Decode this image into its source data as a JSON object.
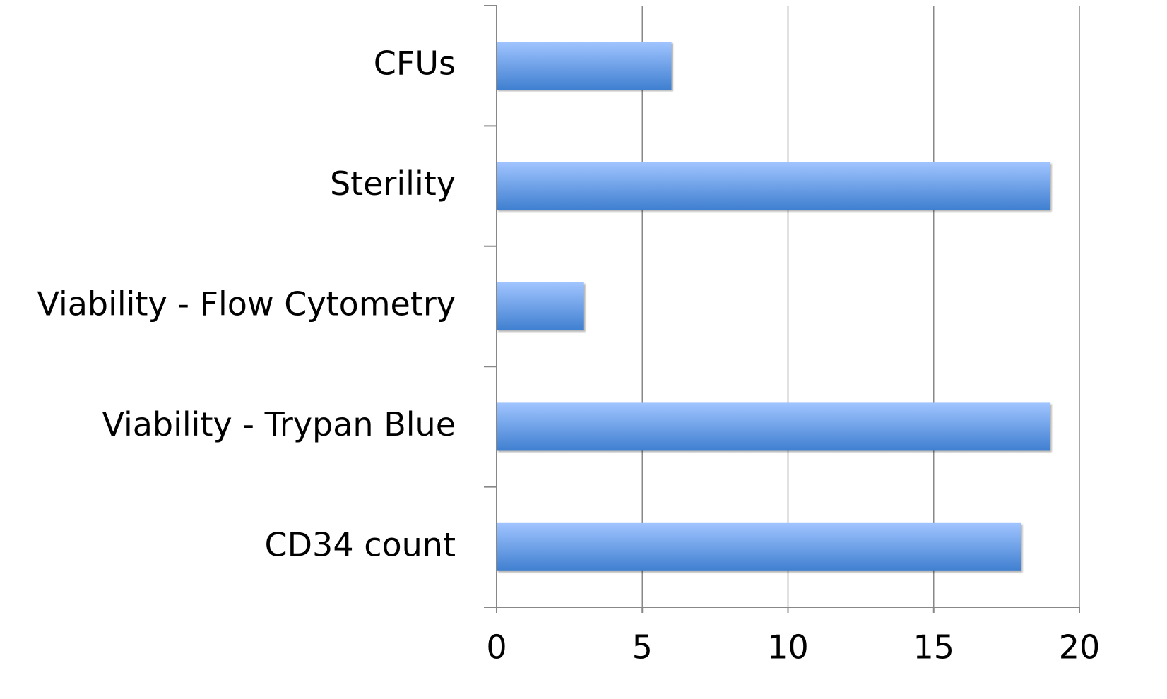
{
  "chart_data": {
    "type": "barh",
    "categories": [
      "CFUs",
      "Sterility",
      "Viability - Flow Cytometry",
      "Viability - Trypan Blue",
      "CD34 count"
    ],
    "values": [
      6,
      19,
      3,
      19,
      18
    ],
    "color": "#3f7fd0",
    "xlim": [
      0,
      20
    ],
    "xticks": [
      0,
      5,
      10,
      15,
      20
    ],
    "grid": true
  }
}
